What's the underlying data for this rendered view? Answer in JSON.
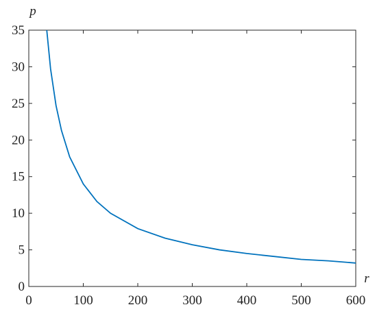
{
  "chart_data": {
    "type": "line",
    "x_label": "r",
    "y_label": "p",
    "x": [
      33,
      40,
      50,
      60,
      75,
      100,
      125,
      150,
      200,
      250,
      300,
      350,
      400,
      450,
      500,
      550,
      600
    ],
    "series": [
      {
        "color": "#0072bd",
        "values": [
          35,
          29.7,
          24.7,
          21.3,
          17.7,
          14.0,
          11.6,
          10.0,
          7.9,
          6.6,
          5.7,
          5.0,
          4.5,
          4.1,
          3.7,
          3.5,
          3.2
        ]
      }
    ],
    "xlim": [
      0,
      600
    ],
    "xticks": [
      0,
      100,
      200,
      300,
      400,
      500,
      600
    ],
    "ylim": [
      0,
      35
    ],
    "yticks": [
      0,
      5,
      10,
      15,
      20,
      25,
      30,
      35
    ]
  }
}
